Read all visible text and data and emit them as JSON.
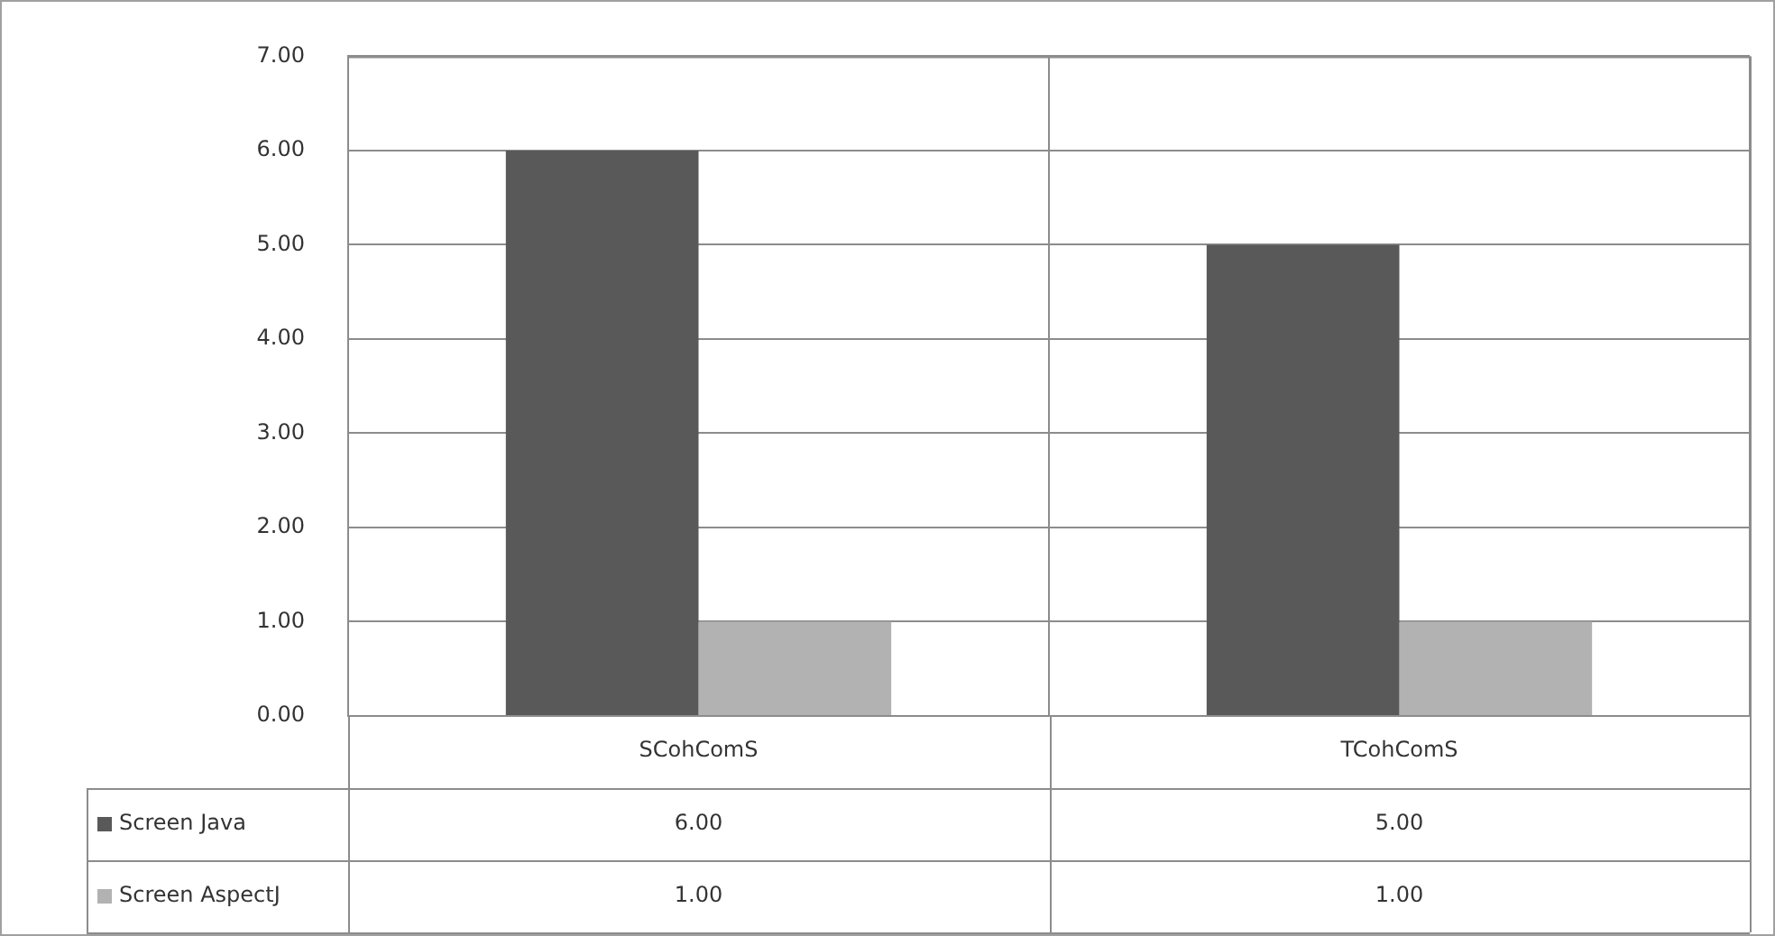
{
  "chart_data": {
    "type": "bar",
    "categories": [
      "SCohComS",
      "TCohComS"
    ],
    "series": [
      {
        "name": "Screen Java",
        "color": "#595959",
        "values": [
          6,
          5
        ],
        "value_labels": [
          "6.00",
          "5.00"
        ]
      },
      {
        "name": "Screen AspectJ",
        "color": "#b2b2b2",
        "values": [
          1,
          1
        ],
        "value_labels": [
          "1.00",
          "1.00"
        ]
      }
    ],
    "ylim": [
      0,
      7
    ],
    "yticks": [
      {
        "value": 0,
        "label": "0.00"
      },
      {
        "value": 1,
        "label": "1.00"
      },
      {
        "value": 2,
        "label": "2.00"
      },
      {
        "value": 3,
        "label": "3.00"
      },
      {
        "value": 4,
        "label": "4.00"
      },
      {
        "value": 5,
        "label": "5.00"
      },
      {
        "value": 6,
        "label": "6.00"
      },
      {
        "value": 7,
        "label": "7.00"
      }
    ],
    "grid": true,
    "legend": "bottom"
  }
}
